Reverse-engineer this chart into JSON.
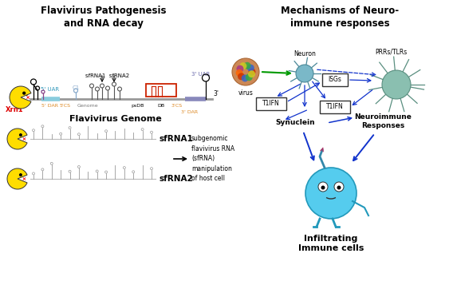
{
  "title_left": "Flavivirus Pathogenesis\nand RNA decay",
  "title_right": "Mechanisms of Neuro-\nimmune responses",
  "genome_label": "Flavivirus Genome",
  "xrn1_label": "Xrn1",
  "sfrna1_label": "sfRNA1",
  "sfrna2_label": "sfRNA2",
  "subgenomic_text": "subgenomic\nflavivirus RNA\n(sfRNA)\nmanipulation\nof host cell",
  "virus_label": "virus",
  "neuron_label": "Neuron",
  "prrrs_label": "PRRs/TLRs",
  "isgs_label": "ISGs",
  "t1ifn_label": "T1IFN",
  "synuclein_label": "Synuclein",
  "neuroimmune_label": "Neuroimmune\nResponses",
  "infiltrating_label": "Infiltrating\nImmune cells",
  "bg_color": "#ffffff",
  "xrn1_arrow_color": "#dd0000",
  "green_arrow_color": "#009900",
  "blue_arrow_color": "#1133cc",
  "box_color": "#cc2200",
  "pacman_color": "#ffdd00",
  "genome_line_color": "#999999",
  "uar5_color": "#88ccdd",
  "uar3_color": "#8888bb",
  "dar_color": "#dd8822",
  "cs_color": "#dd8822",
  "c1_color": "#88aacc",
  "neuron_fill": "#7ab8c8",
  "neuron_edge": "#4a8898",
  "glia_fill": "#8abfb0",
  "glia_edge": "#5a8f80",
  "cell_fill": "#55ccee",
  "cell_edge": "#2299bb",
  "virus_fill": "#cc8844",
  "purple_knob": "#884488"
}
